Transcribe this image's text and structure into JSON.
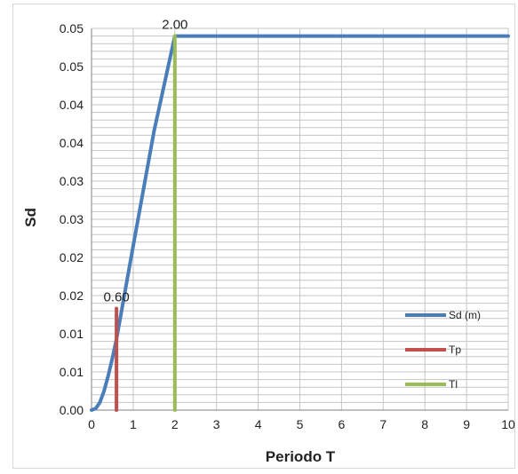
{
  "chart_data": {
    "type": "line",
    "title": "",
    "xlabel": "Periodo T",
    "ylabel": "Sd",
    "xlim": [
      0,
      10
    ],
    "ylim": [
      0,
      0.05
    ],
    "x_ticks": [
      "0",
      "1",
      "2",
      "3",
      "4",
      "5",
      "6",
      "7",
      "8",
      "9",
      "10"
    ],
    "y_ticks": [
      "0.00",
      "0.01",
      "0.01",
      "0.02",
      "0.02",
      "0.03",
      "0.03",
      "0.04",
      "0.04",
      "0.05",
      "0.05"
    ],
    "grid": true,
    "legend_position": "bottom-right",
    "series": [
      {
        "name": "Sd (m)",
        "color": "#4a7ebb",
        "x": [
          0,
          0.1,
          0.2,
          0.3,
          0.4,
          0.5,
          0.6,
          1.0,
          1.5,
          2.0,
          3,
          4,
          5,
          6,
          7,
          8,
          9,
          10
        ],
        "y": [
          0,
          0.0002,
          0.001,
          0.0025,
          0.0045,
          0.0068,
          0.0093,
          0.0215,
          0.0365,
          0.049,
          0.049,
          0.049,
          0.049,
          0.049,
          0.049,
          0.049,
          0.049,
          0.049
        ]
      },
      {
        "name": "Tp",
        "color": "#c0504d",
        "x": [
          0.6,
          0.6
        ],
        "y": [
          0,
          0.0133
        ]
      },
      {
        "name": "Tl",
        "color": "#9bbb59",
        "x": [
          2.0,
          2.0
        ],
        "y": [
          0,
          0.049
        ]
      }
    ],
    "annotations": [
      {
        "text": "0.60",
        "x": 0.6,
        "y": 0.0133
      },
      {
        "text": "2.00",
        "x": 2.0,
        "y": 0.049
      }
    ]
  }
}
